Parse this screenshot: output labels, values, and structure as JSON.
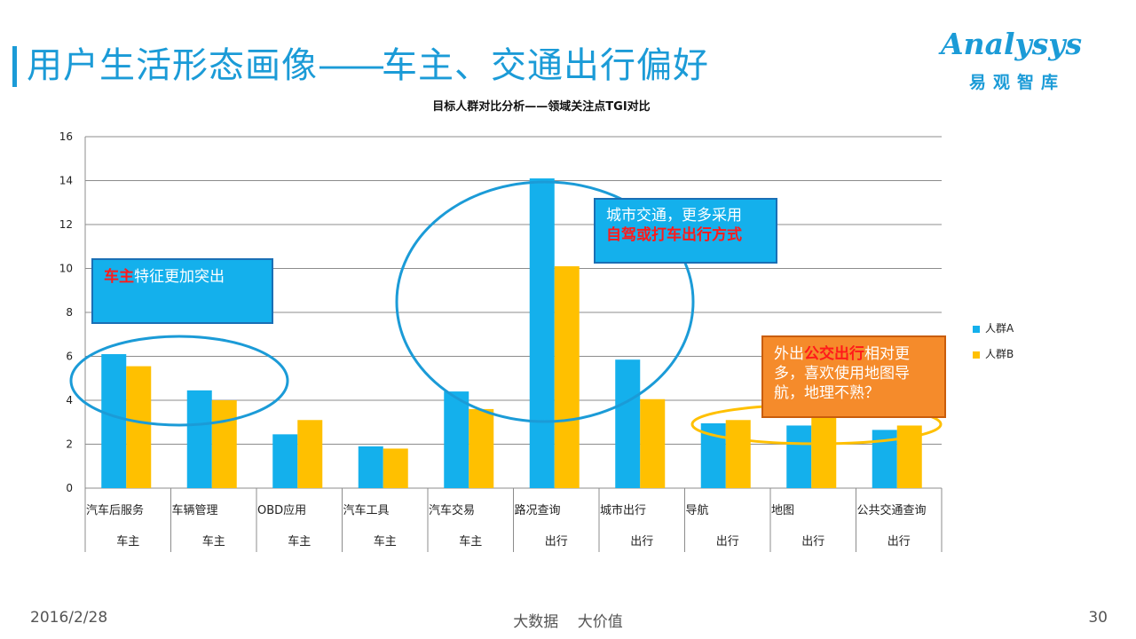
{
  "header": {
    "title": "用户生活形态画像",
    "title_dash": "——",
    "title_sub": "车主、交通出行偏好"
  },
  "logo": {
    "word": "Analysys",
    "chinese": "易观智库"
  },
  "chart_data": {
    "type": "bar",
    "title": "目标人群对比分析——领域关注点TGI对比",
    "categories": [
      "汽车后服务",
      "车辆管理",
      "OBD应用",
      "汽车工具",
      "汽车交易",
      "路况查询",
      "城市出行",
      "导航",
      "地图",
      "公共交通查询"
    ],
    "groups": [
      "车主",
      "车主",
      "车主",
      "车主",
      "车主",
      "出行",
      "出行",
      "出行",
      "出行",
      "出行"
    ],
    "series": [
      {
        "name": "人群A",
        "color": "#14b0ec",
        "values": [
          6.1,
          4.45,
          2.45,
          1.9,
          4.4,
          14.1,
          5.85,
          2.95,
          2.85,
          2.65
        ]
      },
      {
        "name": "人群B",
        "color": "#ffc000",
        "values": [
          5.55,
          4.0,
          3.1,
          1.8,
          3.6,
          10.1,
          4.05,
          3.1,
          3.3,
          2.85
        ]
      }
    ],
    "ylim": [
      0,
      16
    ],
    "yticks": [
      0,
      2,
      4,
      6,
      8,
      10,
      12,
      14,
      16
    ],
    "grid": true,
    "legend": "right"
  },
  "callouts": [
    {
      "highlight": "车主",
      "text": "特征更加突出"
    },
    {
      "line1": "城市交通，更多采用",
      "highlight": "自驾或打车出行方式"
    },
    {
      "prefix": "外出",
      "highlight": "公交出行",
      "suffix": "相对更多，喜欢使用地图导航，地理不熟？"
    }
  ],
  "annotation_colors": {
    "ellipse_blue": "#1b9bd7",
    "ellipse_yellow": "#ffc000",
    "callout_blue": "#14b0ec",
    "callout_orange": "#f58b2b",
    "highlight_red": "#ff1a1a"
  },
  "footer": {
    "date": "2016/2/28",
    "center": "大数据 大价值",
    "page": "30"
  }
}
